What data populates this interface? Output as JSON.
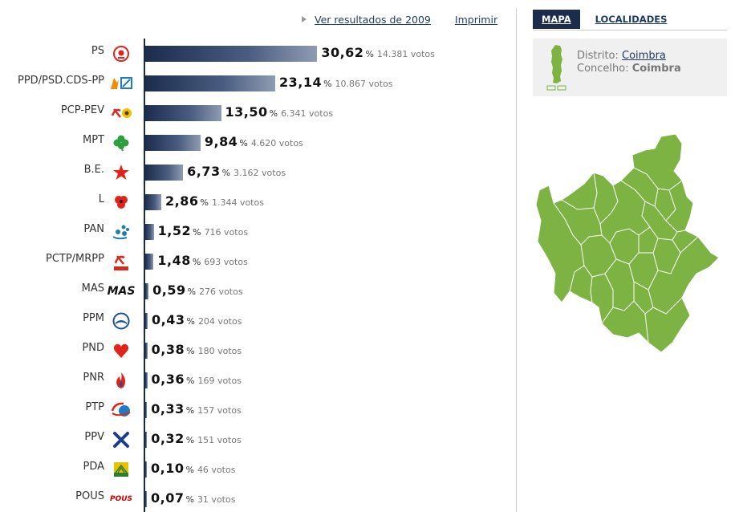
{
  "links": {
    "previous": "Ver resultados de 2009",
    "print": "Imprimir"
  },
  "tabs": [
    {
      "label": "MAPA",
      "active": true
    },
    {
      "label": "LOCALIDADES",
      "active": false
    }
  ],
  "location": {
    "distrito_label": "Distrito:",
    "distrito_value": "Coimbra",
    "concelho_label": "Concelho:",
    "concelho_value": "Coimbra"
  },
  "colors": {
    "bar_dark": "#1b2c4d",
    "bar_light": "#8e9bb3",
    "map_fill": "#7cb342",
    "tab_active_bg": "#1b2c4d"
  },
  "symbols": {
    "percent": "%"
  },
  "parties": [
    {
      "name": "PS",
      "pct": "30,62",
      "votes": "14.381 votos",
      "value": 30.62,
      "icon": "ps-rose-logo-icon"
    },
    {
      "name": "PPD/PSD.CDS-PP",
      "pct": "23,14",
      "votes": "10.867 votos",
      "value": 23.14,
      "icon": "psd-cds-logo-icon"
    },
    {
      "name": "PCP-PEV",
      "pct": "13,50",
      "votes": "6.341 votos",
      "value": 13.5,
      "icon": "hammer-sickle-sunflower-icon"
    },
    {
      "name": "MPT",
      "pct": "9,84",
      "votes": "4.620 votos",
      "value": 9.84,
      "icon": "clover-icon"
    },
    {
      "name": "B.E.",
      "pct": "6,73",
      "votes": "3.162 votos",
      "value": 6.73,
      "icon": "red-star-icon"
    },
    {
      "name": "L",
      "pct": "2,86",
      "votes": "1.344 votos",
      "value": 2.86,
      "icon": "poppy-flower-icon"
    },
    {
      "name": "PAN",
      "pct": "1,52",
      "votes": "716 votos",
      "value": 1.52,
      "icon": "paw-people-icon"
    },
    {
      "name": "PCTP/MRPP",
      "pct": "1,48",
      "votes": "693 votos",
      "value": 1.48,
      "icon": "pctp-hammer-sickle-icon"
    },
    {
      "name": "MAS",
      "pct": "0,59",
      "votes": "276 votos",
      "value": 0.59,
      "icon": "mas-text-logo-icon",
      "logo_text": "MAS"
    },
    {
      "name": "PPM",
      "pct": "0,43",
      "votes": "204 votos",
      "value": 0.43,
      "icon": "ppm-circle-logo-icon"
    },
    {
      "name": "PND",
      "pct": "0,38",
      "votes": "180 votos",
      "value": 0.38,
      "icon": "red-heart-icon"
    },
    {
      "name": "PNR",
      "pct": "0,36",
      "votes": "169 votos",
      "value": 0.36,
      "icon": "flame-icon"
    },
    {
      "name": "PTP",
      "pct": "0,33",
      "votes": "157 votos",
      "value": 0.33,
      "icon": "ptp-circle-logo-icon"
    },
    {
      "name": "PPV",
      "pct": "0,32",
      "votes": "151 votos",
      "value": 0.32,
      "icon": "blue-cross-icon"
    },
    {
      "name": "PDA",
      "pct": "0,10",
      "votes": "46 votos",
      "value": 0.1,
      "icon": "sun-rays-square-icon"
    },
    {
      "name": "POUS",
      "pct": "0,07",
      "votes": "31 votos",
      "value": 0.07,
      "icon": "pous-logo-icon",
      "logo_text": "POUS"
    }
  ]
}
